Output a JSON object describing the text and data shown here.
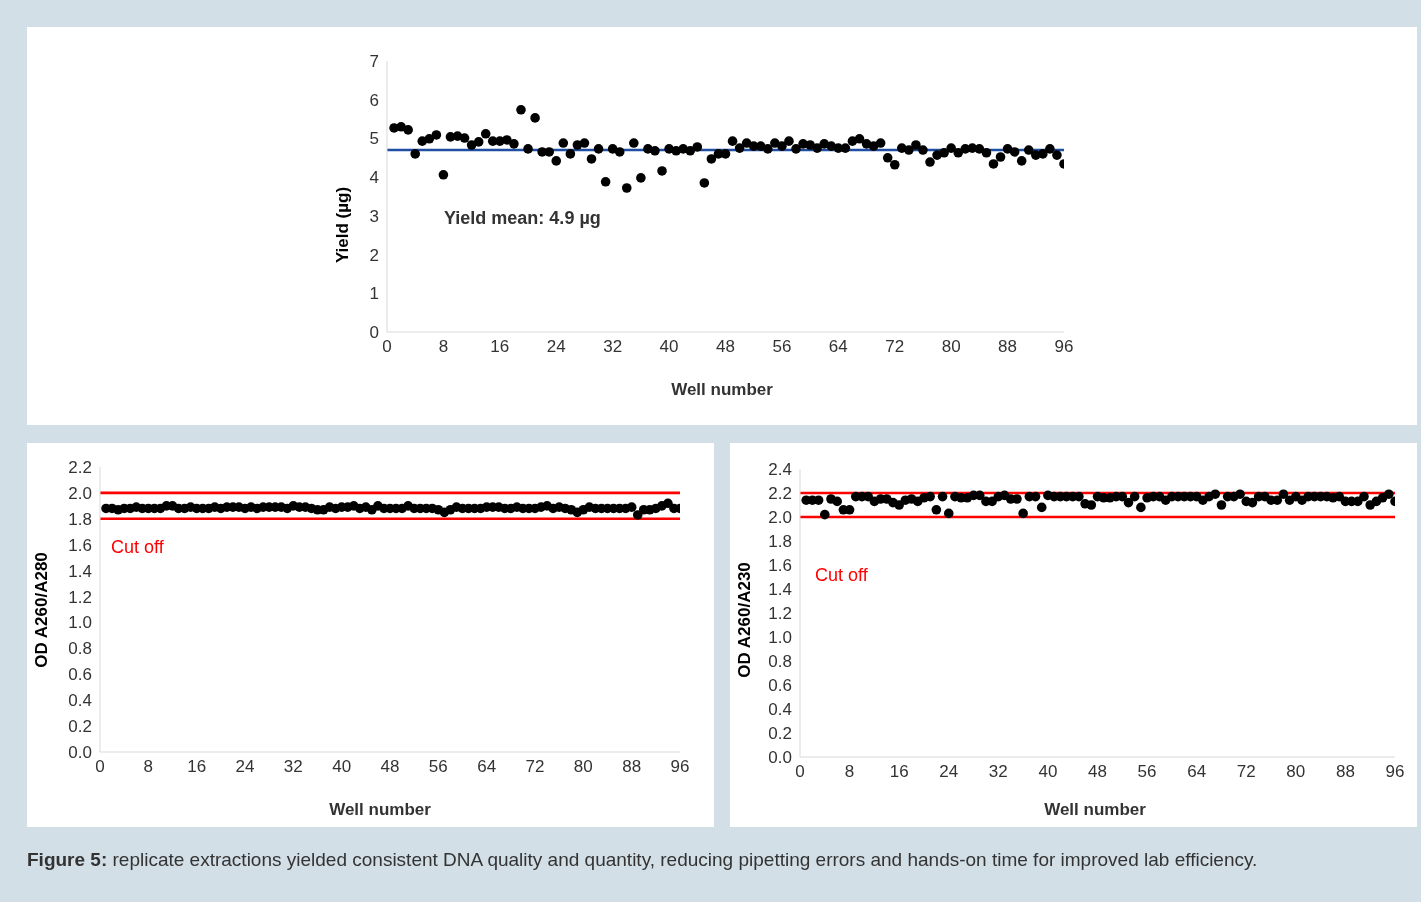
{
  "chart_data": [
    {
      "type": "scatter",
      "xlabel": "Well number",
      "ylabel": "Yield (µg)",
      "marker": "circle",
      "xlim": [
        0,
        96
      ],
      "xticks": [
        0,
        8,
        16,
        24,
        32,
        40,
        48,
        56,
        64,
        72,
        80,
        88,
        96
      ],
      "ylim": [
        0,
        7
      ],
      "yticks": [
        0,
        1,
        2,
        3,
        4,
        5,
        6,
        7
      ],
      "x": [
        1,
        2,
        3,
        4,
        5,
        6,
        7,
        8,
        9,
        10,
        11,
        12,
        13,
        14,
        15,
        16,
        17,
        18,
        19,
        20,
        21,
        22,
        23,
        24,
        25,
        26,
        27,
        28,
        29,
        30,
        31,
        32,
        33,
        34,
        35,
        36,
        37,
        38,
        39,
        40,
        41,
        42,
        43,
        44,
        45,
        46,
        47,
        48,
        49,
        50,
        51,
        52,
        53,
        54,
        55,
        56,
        57,
        58,
        59,
        60,
        61,
        62,
        63,
        64,
        65,
        66,
        67,
        68,
        69,
        70,
        71,
        72,
        73,
        74,
        75,
        76,
        77,
        78,
        79,
        80,
        81,
        82,
        83,
        84,
        85,
        86,
        87,
        88,
        89,
        90,
        91,
        92,
        93,
        94,
        95,
        96
      ],
      "series": [
        {
          "color": "#000000",
          "values": [
            5.27,
            5.3,
            5.22,
            4.6,
            4.93,
            4.99,
            5.09,
            4.06,
            5.04,
            5.06,
            5.01,
            4.83,
            4.91,
            5.12,
            4.93,
            4.93,
            4.96,
            4.86,
            5.74,
            4.73,
            5.53,
            4.65,
            4.65,
            4.42,
            4.88,
            4.6,
            4.83,
            4.88,
            4.47,
            4.73,
            3.88,
            4.73,
            4.65,
            3.72,
            4.88,
            3.98,
            4.73,
            4.68,
            4.16,
            4.73,
            4.68,
            4.73,
            4.68,
            4.78,
            3.85,
            4.47,
            4.6,
            4.6,
            4.93,
            4.75,
            4.88,
            4.8,
            4.8,
            4.73,
            4.88,
            4.8,
            4.93,
            4.73,
            4.86,
            4.83,
            4.75,
            4.86,
            4.8,
            4.75,
            4.75,
            4.93,
            4.99,
            4.86,
            4.8,
            4.88,
            4.5,
            4.32,
            4.75,
            4.7,
            4.83,
            4.7,
            4.39,
            4.57,
            4.63,
            4.75,
            4.63,
            4.73,
            4.75,
            4.73,
            4.63,
            4.34,
            4.52,
            4.73,
            4.65,
            4.42,
            4.7,
            4.57,
            4.6,
            4.73,
            4.57,
            4.34
          ]
        }
      ],
      "ref_lines": [
        {
          "axis": "y",
          "value": 4.7,
          "color": "#1f4ea3"
        }
      ],
      "annotations": [
        "Yield mean: 4.9 µg",
        "Figure 5: replicate extractions yielded consistent DNA quality and quantity, reducing pipetting errors and hands-on time for improved lab efficiency."
      ]
    },
    {
      "type": "scatter",
      "xlabel": "Well number",
      "ylabel": "OD A260/A280",
      "marker": "circle",
      "xlim": [
        0,
        96
      ],
      "xticks": [
        0,
        8,
        16,
        24,
        32,
        40,
        48,
        56,
        64,
        72,
        80,
        88,
        96
      ],
      "ylim": [
        0,
        2.2
      ],
      "yticks": [
        {
          "value": 0,
          "label": "0.0"
        },
        0.2,
        0.4,
        0.6,
        0.8,
        {
          "value": 1,
          "label": "1.0"
        },
        1.2,
        1.4,
        1.6,
        1.8,
        {
          "value": 2,
          "label": "2.0"
        },
        2.2
      ],
      "x": [
        1,
        2,
        3,
        4,
        5,
        6,
        7,
        8,
        9,
        10,
        11,
        12,
        13,
        14,
        15,
        16,
        17,
        18,
        19,
        20,
        21,
        22,
        23,
        24,
        25,
        26,
        27,
        28,
        29,
        30,
        31,
        32,
        33,
        34,
        35,
        36,
        37,
        38,
        39,
        40,
        41,
        42,
        43,
        44,
        45,
        46,
        47,
        48,
        49,
        50,
        51,
        52,
        53,
        54,
        55,
        56,
        57,
        58,
        59,
        60,
        61,
        62,
        63,
        64,
        65,
        66,
        67,
        68,
        69,
        70,
        71,
        72,
        73,
        74,
        75,
        76,
        77,
        78,
        79,
        80,
        81,
        82,
        83,
        84,
        85,
        86,
        87,
        88,
        89,
        90,
        91,
        92,
        93,
        94,
        95,
        96
      ],
      "series": [
        {
          "color": "#000000",
          "values": [
            1.88,
            1.88,
            1.87,
            1.88,
            1.88,
            1.89,
            1.88,
            1.88,
            1.88,
            1.88,
            1.9,
            1.9,
            1.88,
            1.88,
            1.89,
            1.88,
            1.88,
            1.88,
            1.89,
            1.88,
            1.89,
            1.89,
            1.89,
            1.88,
            1.89,
            1.88,
            1.89,
            1.89,
            1.89,
            1.89,
            1.88,
            1.9,
            1.89,
            1.89,
            1.88,
            1.87,
            1.87,
            1.89,
            1.88,
            1.89,
            1.89,
            1.9,
            1.88,
            1.89,
            1.87,
            1.9,
            1.88,
            1.88,
            1.88,
            1.88,
            1.9,
            1.88,
            1.88,
            1.88,
            1.88,
            1.87,
            1.85,
            1.87,
            1.89,
            1.88,
            1.88,
            1.88,
            1.88,
            1.89,
            1.89,
            1.89,
            1.88,
            1.88,
            1.89,
            1.88,
            1.88,
            1.88,
            1.89,
            1.9,
            1.88,
            1.89,
            1.88,
            1.87,
            1.85,
            1.87,
            1.89,
            1.88,
            1.88,
            1.88,
            1.88,
            1.88,
            1.88,
            1.89,
            1.83,
            1.87,
            1.87,
            1.88,
            1.9,
            1.92,
            1.88,
            1.88
          ]
        }
      ],
      "ref_lines": [
        {
          "axis": "y",
          "value": 2.0,
          "color": "#ff0000"
        },
        {
          "axis": "y",
          "value": 1.8,
          "color": "#ff0000"
        }
      ],
      "annotations": [
        "Cut off"
      ]
    },
    {
      "type": "scatter",
      "xlabel": "Well number",
      "ylabel": "OD A260/A230",
      "marker": "circle",
      "xlim": [
        0,
        96
      ],
      "xticks": [
        0,
        8,
        16,
        24,
        32,
        40,
        48,
        56,
        64,
        72,
        80,
        88,
        96
      ],
      "ylim": [
        0,
        2.4
      ],
      "yticks": [
        {
          "value": 0,
          "label": "0.0"
        },
        0.2,
        0.4,
        0.6,
        0.8,
        {
          "value": 1,
          "label": "1.0"
        },
        1.2,
        1.4,
        1.6,
        1.8,
        {
          "value": 2,
          "label": "2.0"
        },
        2.2,
        2.4
      ],
      "x": [
        1,
        2,
        3,
        4,
        5,
        6,
        7,
        8,
        9,
        10,
        11,
        12,
        13,
        14,
        15,
        16,
        17,
        18,
        19,
        20,
        21,
        22,
        23,
        24,
        25,
        26,
        27,
        28,
        29,
        30,
        31,
        32,
        33,
        34,
        35,
        36,
        37,
        38,
        39,
        40,
        41,
        42,
        43,
        44,
        45,
        46,
        47,
        48,
        49,
        50,
        51,
        52,
        53,
        54,
        55,
        56,
        57,
        58,
        59,
        60,
        61,
        62,
        63,
        64,
        65,
        66,
        67,
        68,
        69,
        70,
        71,
        72,
        73,
        74,
        75,
        76,
        77,
        78,
        79,
        80,
        81,
        82,
        83,
        84,
        85,
        86,
        87,
        88,
        89,
        90,
        91,
        92,
        93,
        94,
        95,
        96
      ],
      "series": [
        {
          "color": "#000000",
          "values": [
            2.14,
            2.14,
            2.14,
            2.02,
            2.15,
            2.13,
            2.06,
            2.06,
            2.17,
            2.17,
            2.17,
            2.13,
            2.15,
            2.15,
            2.12,
            2.1,
            2.14,
            2.15,
            2.13,
            2.16,
            2.17,
            2.06,
            2.17,
            2.03,
            2.17,
            2.16,
            2.16,
            2.18,
            2.18,
            2.13,
            2.13,
            2.17,
            2.18,
            2.15,
            2.15,
            2.03,
            2.17,
            2.17,
            2.08,
            2.18,
            2.17,
            2.17,
            2.17,
            2.17,
            2.17,
            2.11,
            2.1,
            2.17,
            2.16,
            2.16,
            2.17,
            2.17,
            2.12,
            2.17,
            2.08,
            2.16,
            2.17,
            2.17,
            2.14,
            2.17,
            2.17,
            2.17,
            2.17,
            2.17,
            2.14,
            2.17,
            2.19,
            2.1,
            2.17,
            2.17,
            2.19,
            2.13,
            2.12,
            2.17,
            2.17,
            2.14,
            2.14,
            2.19,
            2.14,
            2.17,
            2.14,
            2.17,
            2.17,
            2.17,
            2.17,
            2.16,
            2.17,
            2.13,
            2.13,
            2.13,
            2.17,
            2.1,
            2.13,
            2.16,
            2.19,
            2.13
          ]
        }
      ],
      "ref_lines": [
        {
          "axis": "y",
          "value": 2.0,
          "color": "#ff0000"
        },
        {
          "axis": "y",
          "value": 2.2,
          "color": "#ff0000"
        }
      ],
      "annotations": [
        "Cut off"
      ]
    }
  ]
}
